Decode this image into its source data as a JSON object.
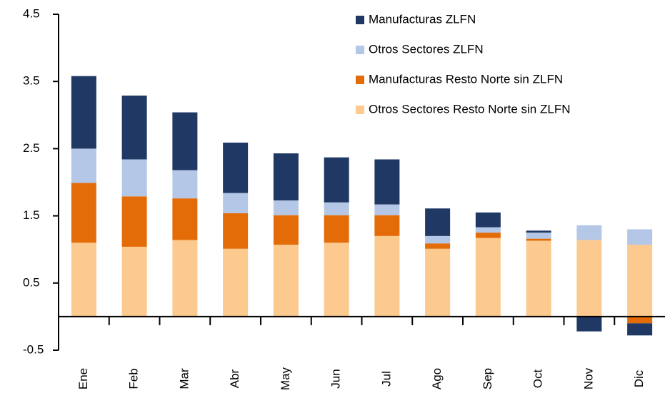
{
  "chart_data": {
    "type": "stacked-bar",
    "categories": [
      "Ene",
      "Feb",
      "Mar",
      "Abr",
      "May",
      "Jun",
      "Jul",
      "Ago",
      "Sep",
      "Oct",
      "Nov",
      "Dic"
    ],
    "series": [
      {
        "name": "Manufacturas ZLFN",
        "color": "#1f3864",
        "values": [
          1.08,
          0.95,
          0.86,
          0.75,
          0.7,
          0.67,
          0.67,
          0.41,
          0.22,
          0.03,
          -0.22,
          -0.18
        ]
      },
      {
        "name": "Otros Sectores ZLFN",
        "color": "#b4c7e7",
        "values": [
          0.51,
          0.55,
          0.42,
          0.3,
          0.22,
          0.19,
          0.16,
          0.11,
          0.08,
          0.09,
          0.22,
          0.23
        ]
      },
      {
        "name": "Manufacturas Resto Norte sin ZLFN",
        "color": "#e36c09",
        "values": [
          0.89,
          0.75,
          0.62,
          0.53,
          0.44,
          0.41,
          0.31,
          0.08,
          0.08,
          0.03,
          0,
          -0.1
        ]
      },
      {
        "name": "Otros Sectores Resto Norte sin ZLFN",
        "color": "#fcc98f",
        "values": [
          1.1,
          1.04,
          1.14,
          1.01,
          1.07,
          1.1,
          1.2,
          1.01,
          1.17,
          1.13,
          1.14,
          1.07
        ]
      }
    ],
    "ylim": [
      -0.5,
      4.5
    ],
    "yticks": [
      -0.5,
      0.5,
      1.5,
      2.5,
      3.5,
      4.5
    ],
    "grid": false,
    "legend": "top-right"
  }
}
